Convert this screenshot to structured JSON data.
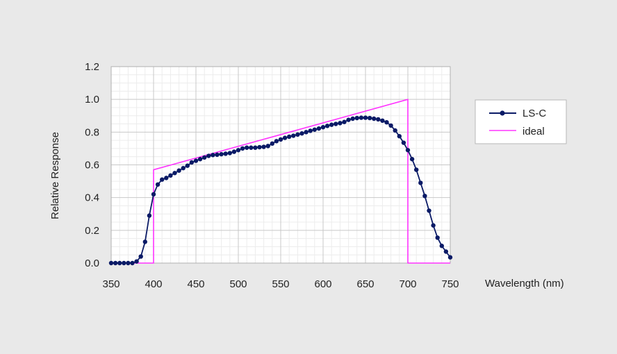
{
  "chart_data": {
    "type": "line",
    "xlabel": "Wavelength (nm)",
    "ylabel": "Relative Response",
    "xlim": [
      350,
      750
    ],
    "ylim": [
      0.0,
      1.2
    ],
    "x_ticks": [
      "350",
      "400",
      "450",
      "500",
      "550",
      "600",
      "650",
      "700",
      "750"
    ],
    "y_ticks": [
      "0.0",
      "0.2",
      "0.4",
      "0.6",
      "0.8",
      "1.0",
      "1.2"
    ],
    "grid": true,
    "legend_position": "right",
    "series": [
      {
        "name": "LS-C",
        "color": "#0a1a66",
        "marker": "circle",
        "x": [
          350,
          355,
          360,
          365,
          370,
          375,
          380,
          385,
          390,
          395,
          400,
          405,
          410,
          415,
          420,
          425,
          430,
          435,
          440,
          445,
          450,
          455,
          460,
          465,
          470,
          475,
          480,
          485,
          490,
          495,
          500,
          505,
          510,
          515,
          520,
          525,
          530,
          535,
          540,
          545,
          550,
          555,
          560,
          565,
          570,
          575,
          580,
          585,
          590,
          595,
          600,
          605,
          610,
          615,
          620,
          625,
          630,
          635,
          640,
          645,
          650,
          655,
          660,
          665,
          670,
          675,
          680,
          685,
          690,
          695,
          700,
          705,
          710,
          715,
          720,
          725,
          730,
          735,
          740,
          745,
          750
        ],
        "y": [
          0.0,
          0.0,
          0.0,
          0.0,
          0.0,
          0.0,
          0.01,
          0.04,
          0.13,
          0.29,
          0.42,
          0.48,
          0.51,
          0.52,
          0.535,
          0.55,
          0.565,
          0.58,
          0.595,
          0.615,
          0.625,
          0.635,
          0.645,
          0.655,
          0.66,
          0.662,
          0.665,
          0.668,
          0.672,
          0.68,
          0.69,
          0.7,
          0.705,
          0.705,
          0.705,
          0.708,
          0.71,
          0.715,
          0.73,
          0.745,
          0.755,
          0.765,
          0.772,
          0.778,
          0.785,
          0.792,
          0.8,
          0.808,
          0.815,
          0.822,
          0.83,
          0.838,
          0.845,
          0.85,
          0.855,
          0.862,
          0.875,
          0.882,
          0.886,
          0.888,
          0.888,
          0.886,
          0.882,
          0.878,
          0.87,
          0.86,
          0.84,
          0.81,
          0.775,
          0.735,
          0.69,
          0.635,
          0.57,
          0.49,
          0.41,
          0.32,
          0.23,
          0.155,
          0.105,
          0.07,
          0.035
        ]
      },
      {
        "name": "ideal",
        "color": "#ff33ff",
        "marker": "none",
        "x": [
          370,
          400,
          400,
          700,
          700,
          750
        ],
        "y": [
          0.0,
          0.0,
          0.57,
          1.0,
          0.0,
          0.0
        ]
      }
    ]
  }
}
